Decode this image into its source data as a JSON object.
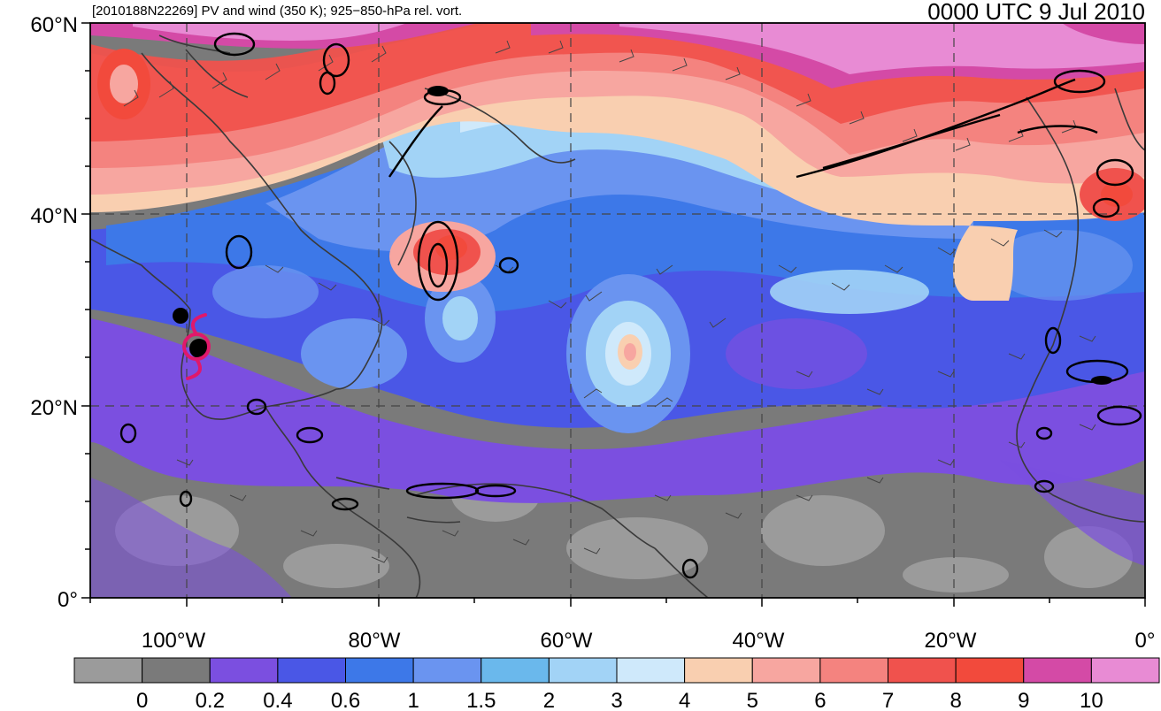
{
  "title": "[2010188N22269] PV and wind (350 K); 925−850-hPa rel. vort.",
  "valid_time": "0000 UTC 9 Jul 2010",
  "lat_labels": [
    "60°N",
    "40°N",
    "20°N",
    "0°"
  ],
  "lon_labels": [
    "100°W",
    "80°W",
    "60°W",
    "40°W",
    "20°W",
    "0°"
  ],
  "colorbar": {
    "ticks": [
      "0",
      "0.2",
      "0.4",
      "0.6",
      "1",
      "1.5",
      "2",
      "3",
      "4",
      "5",
      "6",
      "7",
      "8",
      "9",
      "10"
    ],
    "colors": [
      "#9b9b9b",
      "#7a7a7a",
      "#7b4fe0",
      "#4a57e6",
      "#3d78e8",
      "#6a94f0",
      "#6ab8ec",
      "#a2d3f6",
      "#cfe9fb",
      "#f9cfb0",
      "#f7a6a0",
      "#f4837f",
      "#f0524d",
      "#f24a3c",
      "#d44aa6",
      "#e88bd4"
    ]
  },
  "storm_marker": {
    "name": "hurricane-symbol",
    "color": "#e0186b"
  },
  "colors": {
    "frame": "#000000",
    "grid": "#444444",
    "coast": "#333333",
    "contour": "#000000"
  }
}
